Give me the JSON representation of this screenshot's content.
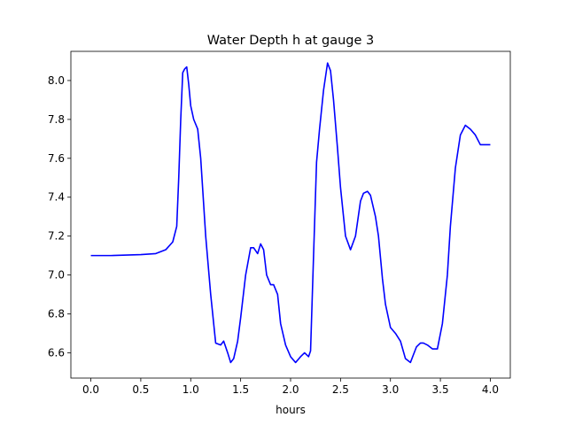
{
  "chart_data": {
    "type": "line",
    "title": "Water Depth h at gauge 3",
    "xlabel": "hours",
    "ylabel": "",
    "xlim": [
      -0.2,
      4.2
    ],
    "ylim": [
      6.47,
      8.15
    ],
    "xticks": [
      0.0,
      0.5,
      1.0,
      1.5,
      2.0,
      2.5,
      3.0,
      3.5,
      4.0
    ],
    "xtick_labels": [
      "0.0",
      "0.5",
      "1.0",
      "1.5",
      "2.0",
      "2.5",
      "3.0",
      "3.5",
      "4.0"
    ],
    "yticks": [
      6.6,
      6.8,
      7.0,
      7.2,
      7.4,
      7.6,
      7.8,
      8.0
    ],
    "ytick_labels": [
      "6.6",
      "6.8",
      "7.0",
      "7.2",
      "7.4",
      "7.6",
      "7.8",
      "8.0"
    ],
    "grid": false,
    "series": [
      {
        "color": "#0000ff",
        "x": [
          0.0,
          0.2,
          0.5,
          0.65,
          0.75,
          0.82,
          0.86,
          0.88,
          0.9,
          0.92,
          0.94,
          0.96,
          0.98,
          1.0,
          1.03,
          1.07,
          1.1,
          1.15,
          1.2,
          1.25,
          1.3,
          1.33,
          1.37,
          1.4,
          1.43,
          1.47,
          1.5,
          1.55,
          1.6,
          1.63,
          1.67,
          1.7,
          1.73,
          1.76,
          1.8,
          1.83,
          1.87,
          1.9,
          1.95,
          2.0,
          2.05,
          2.1,
          2.14,
          2.18,
          2.2,
          2.23,
          2.26,
          2.29,
          2.33,
          2.37,
          2.4,
          2.43,
          2.47,
          2.5,
          2.55,
          2.6,
          2.65,
          2.7,
          2.73,
          2.77,
          2.8,
          2.85,
          2.88,
          2.92,
          2.95,
          3.0,
          3.05,
          3.1,
          3.15,
          3.2,
          3.23,
          3.26,
          3.3,
          3.33,
          3.37,
          3.42,
          3.47,
          3.52,
          3.57,
          3.6,
          3.65,
          3.7,
          3.75,
          3.8,
          3.85,
          3.9,
          3.95,
          4.0
        ],
        "y": [
          7.1,
          7.1,
          7.105,
          7.11,
          7.13,
          7.17,
          7.25,
          7.5,
          7.8,
          8.04,
          8.06,
          8.07,
          7.98,
          7.87,
          7.8,
          7.75,
          7.6,
          7.2,
          6.9,
          6.65,
          6.64,
          6.66,
          6.6,
          6.55,
          6.57,
          6.66,
          6.78,
          7.0,
          7.14,
          7.14,
          7.11,
          7.16,
          7.13,
          7.0,
          6.95,
          6.95,
          6.9,
          6.75,
          6.64,
          6.58,
          6.55,
          6.58,
          6.6,
          6.58,
          6.61,
          7.1,
          7.58,
          7.75,
          7.95,
          8.09,
          8.05,
          7.9,
          7.65,
          7.45,
          7.2,
          7.13,
          7.2,
          7.38,
          7.42,
          7.43,
          7.41,
          7.3,
          7.2,
          6.98,
          6.85,
          6.73,
          6.7,
          6.66,
          6.57,
          6.55,
          6.59,
          6.63,
          6.65,
          6.65,
          6.64,
          6.62,
          6.62,
          6.75,
          7.0,
          7.25,
          7.55,
          7.72,
          7.77,
          7.75,
          7.72,
          7.67,
          7.67,
          7.67
        ]
      }
    ]
  }
}
